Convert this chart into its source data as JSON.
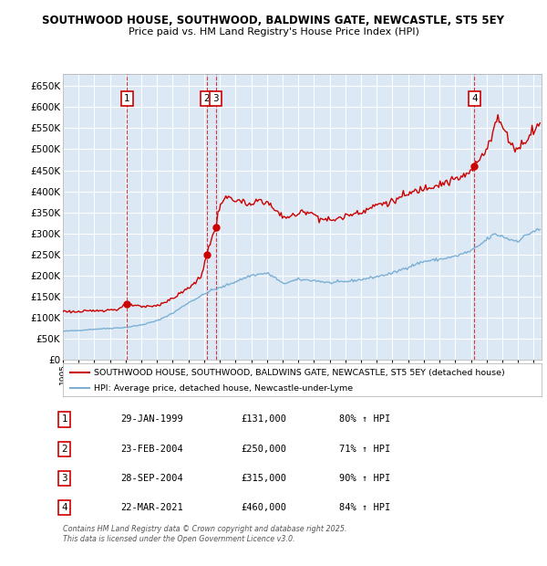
{
  "title_line1": "SOUTHWOOD HOUSE, SOUTHWOOD, BALDWINS GATE, NEWCASTLE, ST5 5EY",
  "title_line2": "Price paid vs. HM Land Registry's House Price Index (HPI)",
  "legend_label_red": "SOUTHWOOD HOUSE, SOUTHWOOD, BALDWINS GATE, NEWCASTLE, ST5 5EY (detached house)",
  "legend_label_blue": "HPI: Average price, detached house, Newcastle-under-Lyme",
  "background_color": "#dce9f5",
  "red_color": "#cc0000",
  "blue_color": "#7bafd4",
  "transactions": [
    {
      "num": 1,
      "date_decimal": 1999.08,
      "price": 131000,
      "label": "29-JAN-1999",
      "price_label": "£131,000",
      "hpi_pct": "80% ↑ HPI"
    },
    {
      "num": 2,
      "date_decimal": 2004.15,
      "price": 250000,
      "label": "23-FEB-2004",
      "price_label": "£250,000",
      "hpi_pct": "71% ↑ HPI"
    },
    {
      "num": 3,
      "date_decimal": 2004.75,
      "price": 315000,
      "label": "28-SEP-2004",
      "price_label": "£315,000",
      "hpi_pct": "90% ↑ HPI"
    },
    {
      "num": 4,
      "date_decimal": 2021.22,
      "price": 460000,
      "label": "22-MAR-2021",
      "price_label": "£460,000",
      "hpi_pct": "84% ↑ HPI"
    }
  ],
  "ylim": [
    0,
    680000
  ],
  "yticks": [
    0,
    50000,
    100000,
    150000,
    200000,
    250000,
    300000,
    350000,
    400000,
    450000,
    500000,
    550000,
    600000,
    650000
  ],
  "xmin": 1995.0,
  "xmax": 2025.5,
  "footnote": "Contains HM Land Registry data © Crown copyright and database right 2025.\nThis data is licensed under the Open Government Licence v3.0."
}
